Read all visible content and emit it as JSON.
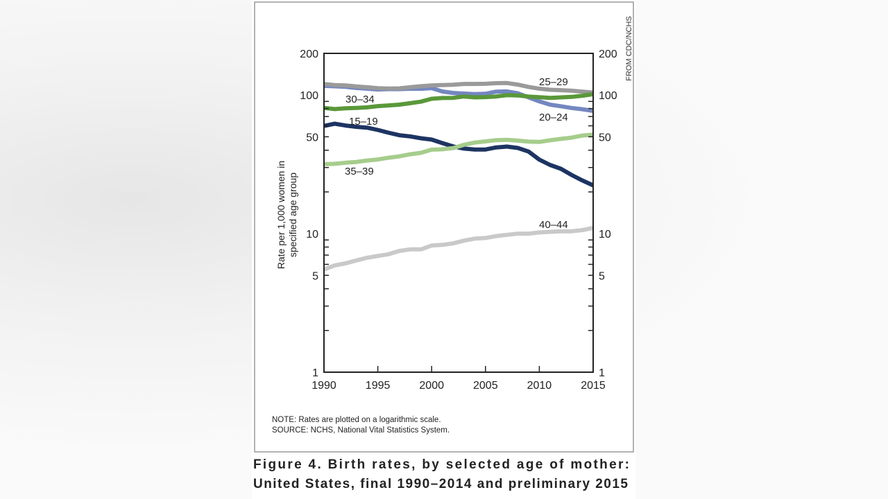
{
  "credit": "FROM CDC/NCHS",
  "caption": {
    "line1": "Figure 4. Birth rates, by selected age of mother:",
    "line2": "United States, final 1990–2014 and preliminary 2015"
  },
  "notes": {
    "note": "NOTE: Rates are plotted on a logarithmic scale.",
    "source": "SOURCE: NCHS, National Vital Statistics System."
  },
  "chart_data": {
    "type": "line",
    "title": "",
    "xlabel": "",
    "ylabel_lines": [
      "Rate per 1,000 women in",
      "specified age group"
    ],
    "y_scale": "log",
    "xlim": [
      1990,
      2015
    ],
    "ylim": [
      1,
      200
    ],
    "x_ticks": [
      1990,
      1995,
      2000,
      2005,
      2010,
      2015
    ],
    "y_tick_labels": [
      1,
      5,
      10,
      50,
      100,
      200
    ],
    "grid": false,
    "x": [
      1990,
      1991,
      1992,
      1993,
      1994,
      1995,
      1996,
      1997,
      1998,
      1999,
      2000,
      2001,
      2002,
      2003,
      2004,
      2005,
      2006,
      2007,
      2008,
      2009,
      2010,
      2011,
      2012,
      2013,
      2014,
      2015
    ],
    "series": [
      {
        "name": "15–19",
        "color": "#1d3462",
        "values": [
          59.9,
          62.1,
          60.3,
          59.0,
          58.2,
          56.0,
          53.5,
          51.3,
          50.3,
          48.8,
          47.7,
          45.0,
          42.6,
          41.1,
          40.5,
          40.5,
          41.9,
          42.5,
          41.5,
          39.1,
          34.2,
          31.3,
          29.4,
          26.5,
          24.2,
          22.3
        ]
      },
      {
        "name": "20–24",
        "color": "#7487c0",
        "values": [
          116.5,
          115.7,
          114.6,
          112.6,
          111.1,
          109.8,
          110.4,
          110.4,
          111.2,
          111.0,
          112.3,
          106.2,
          103.6,
          102.6,
          101.7,
          102.2,
          105.9,
          106.3,
          103.0,
          96.2,
          90.0,
          85.3,
          83.1,
          80.7,
          79.0,
          76.9
        ]
      },
      {
        "name": "25–29",
        "color": "#9a9a9a",
        "values": [
          120.2,
          118.2,
          117.4,
          115.5,
          113.9,
          112.2,
          111.5,
          111.8,
          113.9,
          115.8,
          117.4,
          118.1,
          118.7,
          120.3,
          120.3,
          120.6,
          121.9,
          122.1,
          119.0,
          114.5,
          111.3,
          109.2,
          108.5,
          107.5,
          105.8,
          104.3
        ]
      },
      {
        "name": "30–34",
        "color": "#5a983a",
        "values": [
          80.8,
          79.2,
          80.2,
          80.8,
          81.5,
          83.2,
          84.2,
          85.3,
          87.4,
          89.6,
          94.1,
          95.3,
          95.5,
          97.7,
          96.3,
          96.7,
          97.7,
          99.9,
          99.4,
          97.5,
          96.5,
          95.5,
          96.3,
          97.0,
          98.8,
          101.5
        ]
      },
      {
        "name": "35–39",
        "color": "#a6cd8c",
        "values": [
          31.7,
          31.9,
          32.5,
          32.9,
          33.7,
          34.3,
          35.3,
          36.1,
          37.4,
          38.3,
          40.4,
          40.6,
          41.4,
          43.8,
          45.4,
          46.3,
          47.3,
          47.5,
          46.9,
          46.1,
          45.9,
          47.2,
          48.3,
          49.3,
          51.0,
          51.8
        ]
      },
      {
        "name": "40–44",
        "color": "#c9c9c9",
        "values": [
          5.5,
          5.9,
          6.1,
          6.4,
          6.7,
          6.9,
          7.1,
          7.5,
          7.7,
          7.7,
          8.2,
          8.3,
          8.5,
          8.9,
          9.2,
          9.3,
          9.6,
          9.8,
          10.0,
          10.0,
          10.2,
          10.3,
          10.4,
          10.4,
          10.6,
          11.0
        ]
      }
    ]
  }
}
